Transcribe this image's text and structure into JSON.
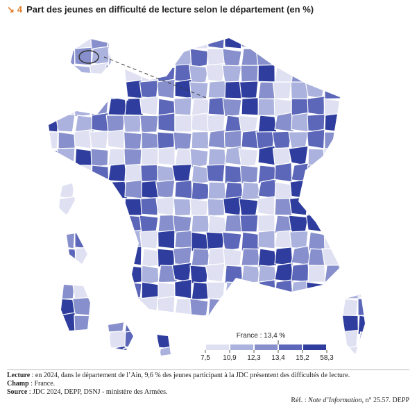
{
  "header": {
    "number": "4",
    "title": "Part des jeunes en difficulté de lecture selon le département (en %)"
  },
  "legend": {
    "title": "France : 13,4 %",
    "breaks": [
      {
        "value": 7.5,
        "label": "7,5"
      },
      {
        "value": 10.9,
        "label": "10,9"
      },
      {
        "value": 12.3,
        "label": "12,3"
      },
      {
        "value": 13.4,
        "label": "13,4"
      },
      {
        "value": 15.2,
        "label": "15,2"
      },
      {
        "value": 58.3,
        "label": "58,3"
      }
    ],
    "colors": [
      "#dfe1f2",
      "#abb2dd",
      "#8790cc",
      "#5c67b9",
      "#2f3e9e"
    ]
  },
  "notes": {
    "lecture_label": "Lecture",
    "lecture_text": " : en 2024, dans le département de l’Ain, 9,6 % des jeunes participant à la JDC présentent des difficultés de lecture.",
    "champ_label": "Champ",
    "champ_text": " : France.",
    "source_label": "Source",
    "source_text": " : JDC 2024, DEPP, DSNJ - ministère des Armées."
  },
  "ref": {
    "prefix": "Réf. : ",
    "italic": "Note d’Information",
    "suffix": ", n° 25.57. DEPP"
  }
}
